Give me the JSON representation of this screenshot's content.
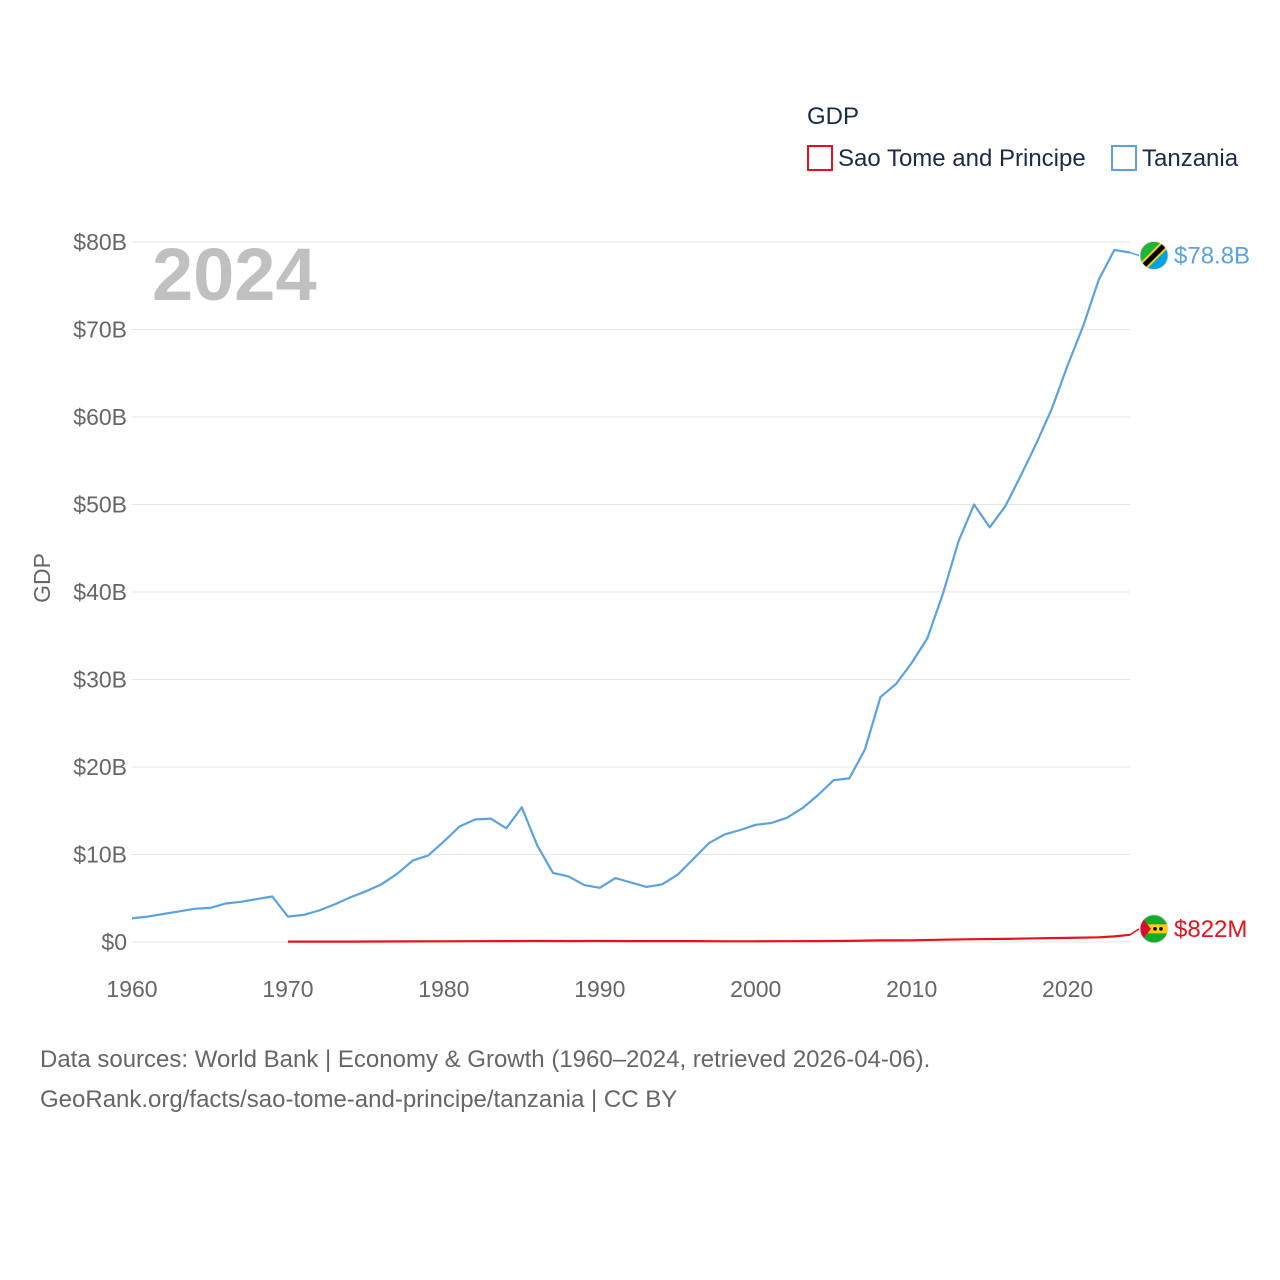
{
  "chart_data": {
    "type": "line",
    "legend_title": "GDP",
    "ylabel": "GDP",
    "year_label": "2024",
    "xlim": [
      1960,
      2024
    ],
    "ylim": [
      0,
      80
    ],
    "y_unit": "billions USD",
    "x_ticks": [
      1960,
      1970,
      1980,
      1990,
      2000,
      2010,
      2020
    ],
    "x_tick_labels": [
      "1960",
      "1970",
      "1980",
      "1990",
      "2000",
      "2010",
      "2020"
    ],
    "y_ticks": [
      0,
      10,
      20,
      30,
      40,
      50,
      60,
      70,
      80
    ],
    "y_tick_labels": [
      "$0",
      "$10B",
      "$20B",
      "$30B",
      "$40B",
      "$50B",
      "$60B",
      "$70B",
      "$80B"
    ],
    "legend_position": "top-right",
    "series": [
      {
        "name": "Sao Tome and Principe",
        "color": "#e8101a",
        "end_label": "$822M",
        "flag": "sao-tome-flag",
        "x": [
          1970,
          1972,
          1974,
          1976,
          1978,
          1980,
          1982,
          1984,
          1986,
          1988,
          1990,
          1992,
          1994,
          1996,
          1998,
          2000,
          2002,
          2004,
          2006,
          2008,
          2010,
          2012,
          2014,
          2016,
          2018,
          2020,
          2022,
          2023,
          2024
        ],
        "values": [
          0.04,
          0.05,
          0.05,
          0.06,
          0.07,
          0.08,
          0.09,
          0.1,
          0.11,
          0.1,
          0.12,
          0.1,
          0.1,
          0.1,
          0.08,
          0.08,
          0.09,
          0.1,
          0.13,
          0.18,
          0.2,
          0.26,
          0.32,
          0.35,
          0.42,
          0.47,
          0.54,
          0.64,
          0.82
        ]
      },
      {
        "name": "Tanzania",
        "color": "#5aa2e2",
        "end_label": "$78.8B",
        "flag": "tanzania-flag",
        "x": [
          1960,
          1961,
          1962,
          1963,
          1964,
          1965,
          1966,
          1967,
          1968,
          1969,
          1970,
          1971,
          1972,
          1973,
          1974,
          1975,
          1976,
          1977,
          1978,
          1979,
          1980,
          1981,
          1982,
          1983,
          1984,
          1985,
          1986,
          1987,
          1988,
          1989,
          1990,
          1991,
          1992,
          1993,
          1994,
          1995,
          1996,
          1997,
          1998,
          1999,
          2000,
          2001,
          2002,
          2003,
          2004,
          2005,
          2006,
          2007,
          2008,
          2009,
          2010,
          2011,
          2012,
          2013,
          2014,
          2015,
          2016,
          2017,
          2018,
          2019,
          2020,
          2021,
          2022,
          2023,
          2024
        ],
        "values": [
          2.7,
          2.9,
          3.2,
          3.5,
          3.8,
          3.9,
          4.4,
          4.6,
          4.9,
          5.2,
          2.9,
          3.1,
          3.6,
          4.3,
          5.1,
          5.8,
          6.6,
          7.8,
          9.3,
          9.9,
          11.5,
          13.2,
          14.0,
          14.1,
          13.0,
          15.4,
          11.0,
          7.9,
          7.5,
          6.5,
          6.2,
          7.3,
          6.8,
          6.3,
          6.6,
          7.7,
          9.5,
          11.3,
          12.3,
          12.8,
          13.4,
          13.6,
          14.2,
          15.3,
          16.8,
          18.5,
          18.7,
          22.0,
          28.0,
          29.5,
          31.9,
          34.7,
          39.8,
          45.8,
          50.0,
          47.4,
          49.8,
          53.3,
          57.0,
          61.0,
          65.9,
          70.4,
          75.7,
          79.1,
          78.8
        ]
      }
    ]
  },
  "footer": {
    "line1": "Data sources: World Bank | Economy & Growth (1960–2024, retrieved 2026-04-06).",
    "line2": "GeoRank.org/facts/sao-tome-and-principe/tanzania | CC BY"
  }
}
